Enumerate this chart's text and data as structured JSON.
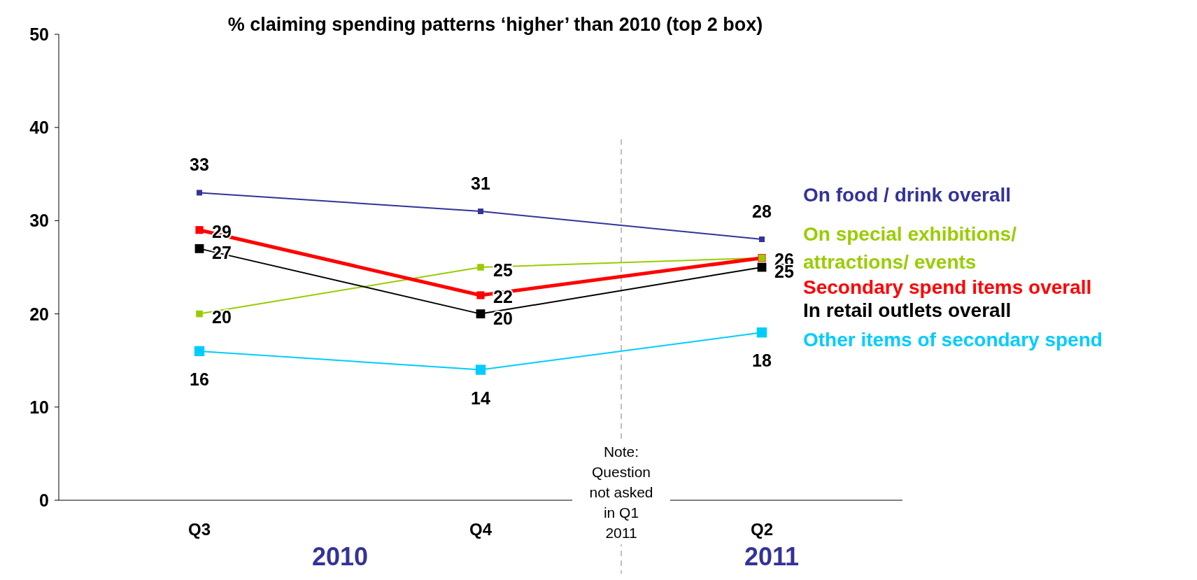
{
  "chart_data": {
    "type": "line",
    "title": "% claiming spending patterns ‘higher’ than 2010 (top 2 box)",
    "categories": [
      "Q3",
      "Q4",
      "Q2"
    ],
    "series": [
      {
        "name": "On food / drink overall",
        "color": "#333399",
        "values": [
          33,
          31,
          28
        ],
        "value_labels": [
          "33",
          "31",
          "28"
        ]
      },
      {
        "name": "On special exhibitions/ attractions/ events",
        "color": "#99cc00",
        "values": [
          20,
          25,
          26
        ],
        "value_labels": [
          "20",
          "25",
          null
        ]
      },
      {
        "name": "Secondary spend items overall",
        "color": "#ff0000",
        "values": [
          29,
          22,
          26
        ],
        "value_labels": [
          "29",
          "22",
          "26"
        ]
      },
      {
        "name": "In retail outlets overall",
        "color": "#000000",
        "values": [
          27,
          20,
          25
        ],
        "value_labels": [
          "27",
          "20",
          "25"
        ]
      },
      {
        "name": "Other items of secondary spend",
        "color": "#00ccff",
        "values": [
          16,
          14,
          18
        ],
        "value_labels": [
          "16",
          "14",
          "18"
        ]
      }
    ],
    "ylim": [
      0,
      50
    ],
    "yticks": [
      0,
      10,
      20,
      30,
      40,
      50
    ],
    "marker": "square",
    "legend": "right",
    "annotations": [
      "2010",
      "2011",
      "Note: Question not asked in Q1 2011"
    ]
  }
}
